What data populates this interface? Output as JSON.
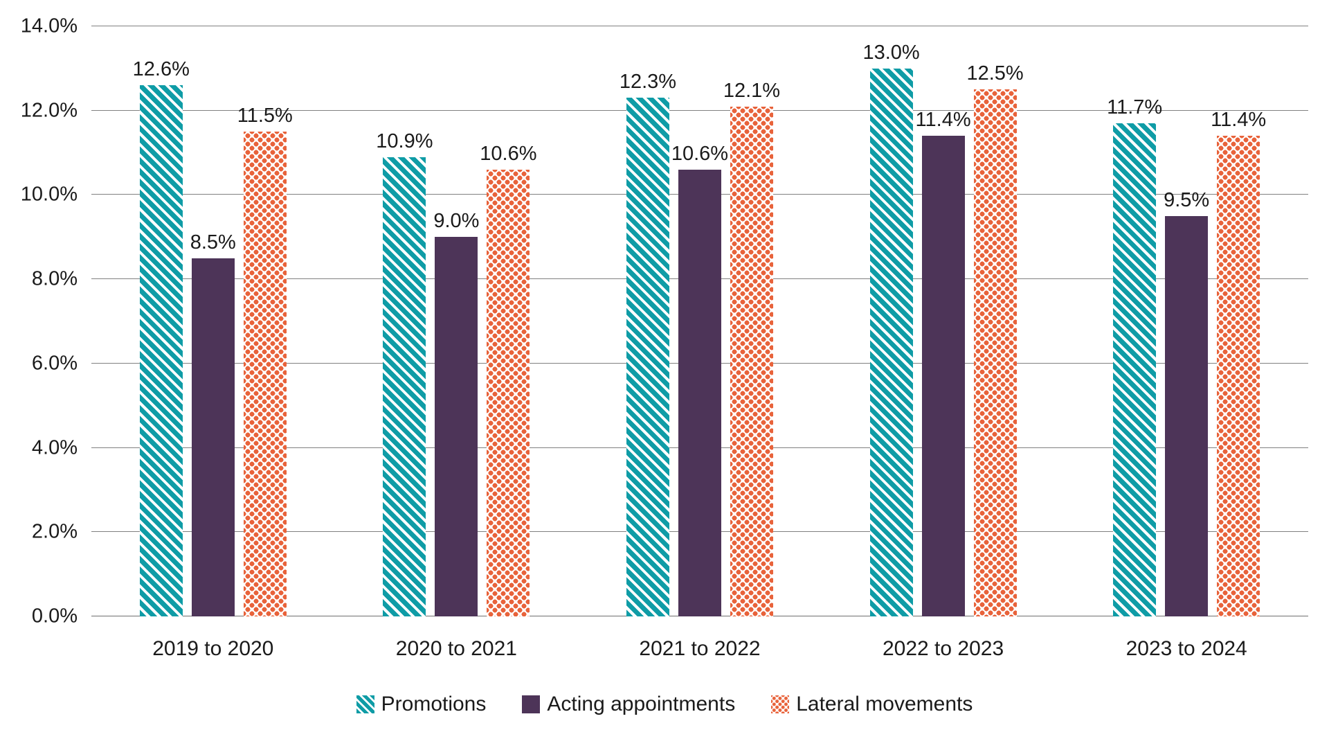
{
  "chart_data": {
    "type": "bar",
    "categories": [
      "2019 to 2020",
      "2020 to 2021",
      "2021 to 2022",
      "2022 to 2023",
      "2023 to 2024"
    ],
    "series": [
      {
        "name": "Promotions",
        "values": [
          12.6,
          10.9,
          12.3,
          13.0,
          11.7
        ],
        "labels": [
          "12.6%",
          "10.9%",
          "12.3%",
          "13.0%",
          "11.7%"
        ],
        "color": "#0F9CA6",
        "pattern": "diagonal-stripes"
      },
      {
        "name": "Acting appointments",
        "values": [
          8.5,
          9.0,
          10.6,
          11.4,
          9.5
        ],
        "labels": [
          "8.5%",
          "9.0%",
          "10.6%",
          "11.4%",
          "9.5%"
        ],
        "color": "#4D3458",
        "pattern": "solid"
      },
      {
        "name": "Lateral movements",
        "values": [
          11.5,
          10.6,
          12.1,
          12.5,
          11.4
        ],
        "labels": [
          "11.5%",
          "10.6%",
          "12.1%",
          "12.5%",
          "11.4%"
        ],
        "color": "#E8633B",
        "pattern": "dots"
      }
    ],
    "title": "",
    "xlabel": "",
    "ylabel": "",
    "ylim": [
      0,
      14
    ],
    "ytick_step": 2,
    "yticks": [
      "0.0%",
      "2.0%",
      "4.0%",
      "6.0%",
      "8.0%",
      "10.0%",
      "12.0%",
      "14.0%"
    ],
    "grid": true,
    "gridline_color": "#808080",
    "legend_position": "bottom"
  }
}
